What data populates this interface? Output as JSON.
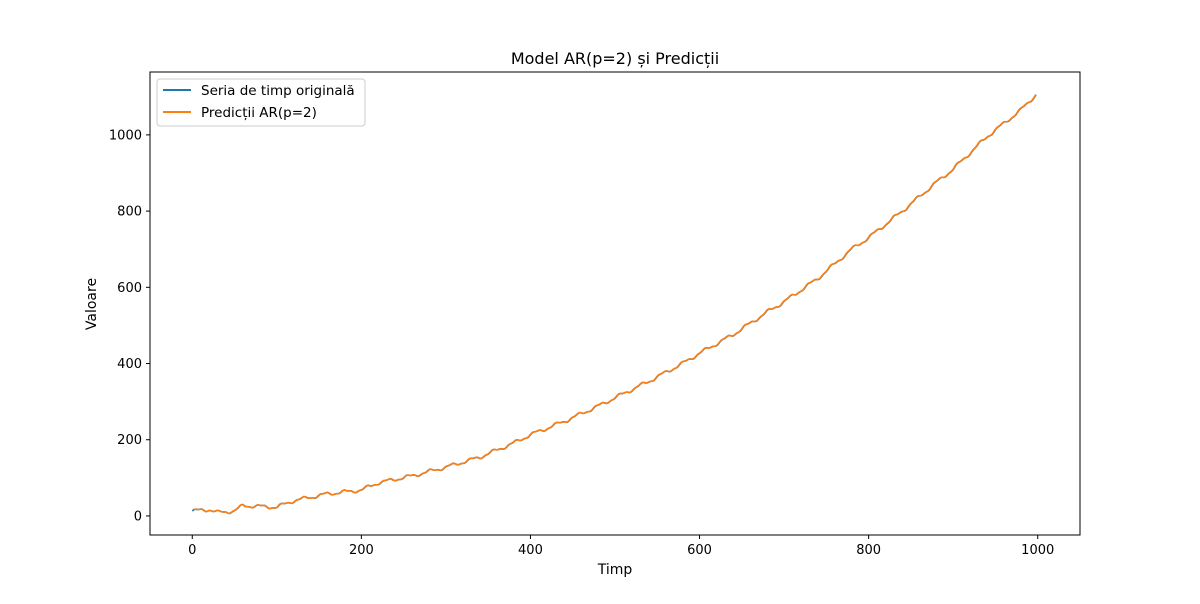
{
  "chart_data": {
    "type": "line",
    "title": "Model AR(p=2) și Predicții",
    "xlabel": "Timp",
    "ylabel": "Valoare",
    "xlim": [
      -50,
      1050
    ],
    "ylim": [
      -50,
      1165
    ],
    "xticks": [
      0,
      200,
      400,
      600,
      800,
      1000
    ],
    "yticks": [
      0,
      200,
      400,
      600,
      800,
      1000
    ],
    "grid": false,
    "legend_position": "top-left",
    "trend_points": [
      {
        "x": 0,
        "y": 13
      },
      {
        "x": 20,
        "y": 17
      },
      {
        "x": 30,
        "y": 9
      },
      {
        "x": 50,
        "y": 13
      },
      {
        "x": 60,
        "y": 27
      },
      {
        "x": 100,
        "y": 23
      },
      {
        "x": 120,
        "y": 40
      },
      {
        "x": 160,
        "y": 58
      },
      {
        "x": 200,
        "y": 68
      },
      {
        "x": 220,
        "y": 87
      },
      {
        "x": 260,
        "y": 105
      },
      {
        "x": 300,
        "y": 128
      },
      {
        "x": 340,
        "y": 154
      },
      {
        "x": 380,
        "y": 191
      },
      {
        "x": 400,
        "y": 213
      },
      {
        "x": 440,
        "y": 248
      },
      {
        "x": 480,
        "y": 288
      },
      {
        "x": 500,
        "y": 310
      },
      {
        "x": 540,
        "y": 353
      },
      {
        "x": 580,
        "y": 400
      },
      {
        "x": 600,
        "y": 427
      },
      {
        "x": 640,
        "y": 476
      },
      {
        "x": 680,
        "y": 535
      },
      {
        "x": 700,
        "y": 562
      },
      {
        "x": 740,
        "y": 623
      },
      {
        "x": 780,
        "y": 700
      },
      {
        "x": 800,
        "y": 730
      },
      {
        "x": 840,
        "y": 800
      },
      {
        "x": 880,
        "y": 875
      },
      {
        "x": 900,
        "y": 910
      },
      {
        "x": 940,
        "y": 995
      },
      {
        "x": 980,
        "y": 1065
      },
      {
        "x": 1000,
        "y": 1110
      }
    ],
    "wiggle_amplitude": 4,
    "wiggle_period": 25,
    "series": [
      {
        "name": "Seria de timp originală",
        "color": "#1f77b4",
        "x_start": 0,
        "x_end": 999
      },
      {
        "name": "Predicții AR(p=2)",
        "color": "#ff7f0e",
        "x_start": 2,
        "x_end": 999
      }
    ]
  }
}
